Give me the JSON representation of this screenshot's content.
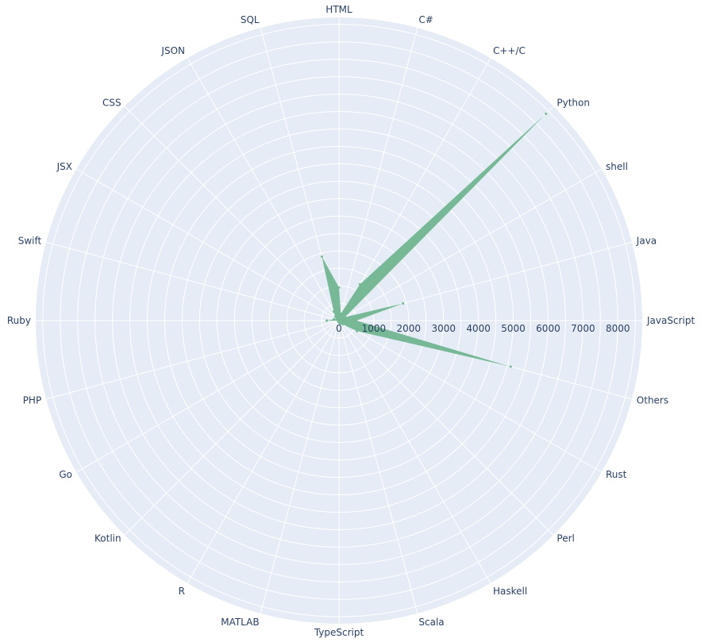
{
  "chart_data": {
    "type": "radar",
    "categories": [
      "JavaScript",
      "Java",
      "shell",
      "Python",
      "C++/C",
      "C#",
      "HTML",
      "SQL",
      "JSON",
      "CSS",
      "JSX",
      "Swift",
      "Ruby",
      "PHP",
      "Go",
      "Kotlin",
      "R",
      "MATLAB",
      "TypeScript",
      "Scala",
      "Haskell",
      "Perl",
      "Rust",
      "Others"
    ],
    "series": [
      {
        "values": [
          500,
          1900,
          200,
          8400,
          1200,
          200,
          950,
          1900,
          300,
          150,
          80,
          150,
          350,
          20,
          30,
          30,
          30,
          30,
          50,
          80,
          100,
          150,
          600,
          5100
        ]
      }
    ],
    "radial_ticks": [
      "0",
      "1000",
      "2000",
      "3000",
      "4000",
      "5000",
      "6000",
      "7000",
      "8000"
    ],
    "radial_range": [
      0,
      8700
    ],
    "direction": "counterclockwise",
    "rotation_start": "east",
    "grid": true,
    "colors": {
      "plot_bg": "#E5ECF6",
      "grid": "#ffffff",
      "fill": "#77B897",
      "text": "#2a3f5f"
    }
  }
}
